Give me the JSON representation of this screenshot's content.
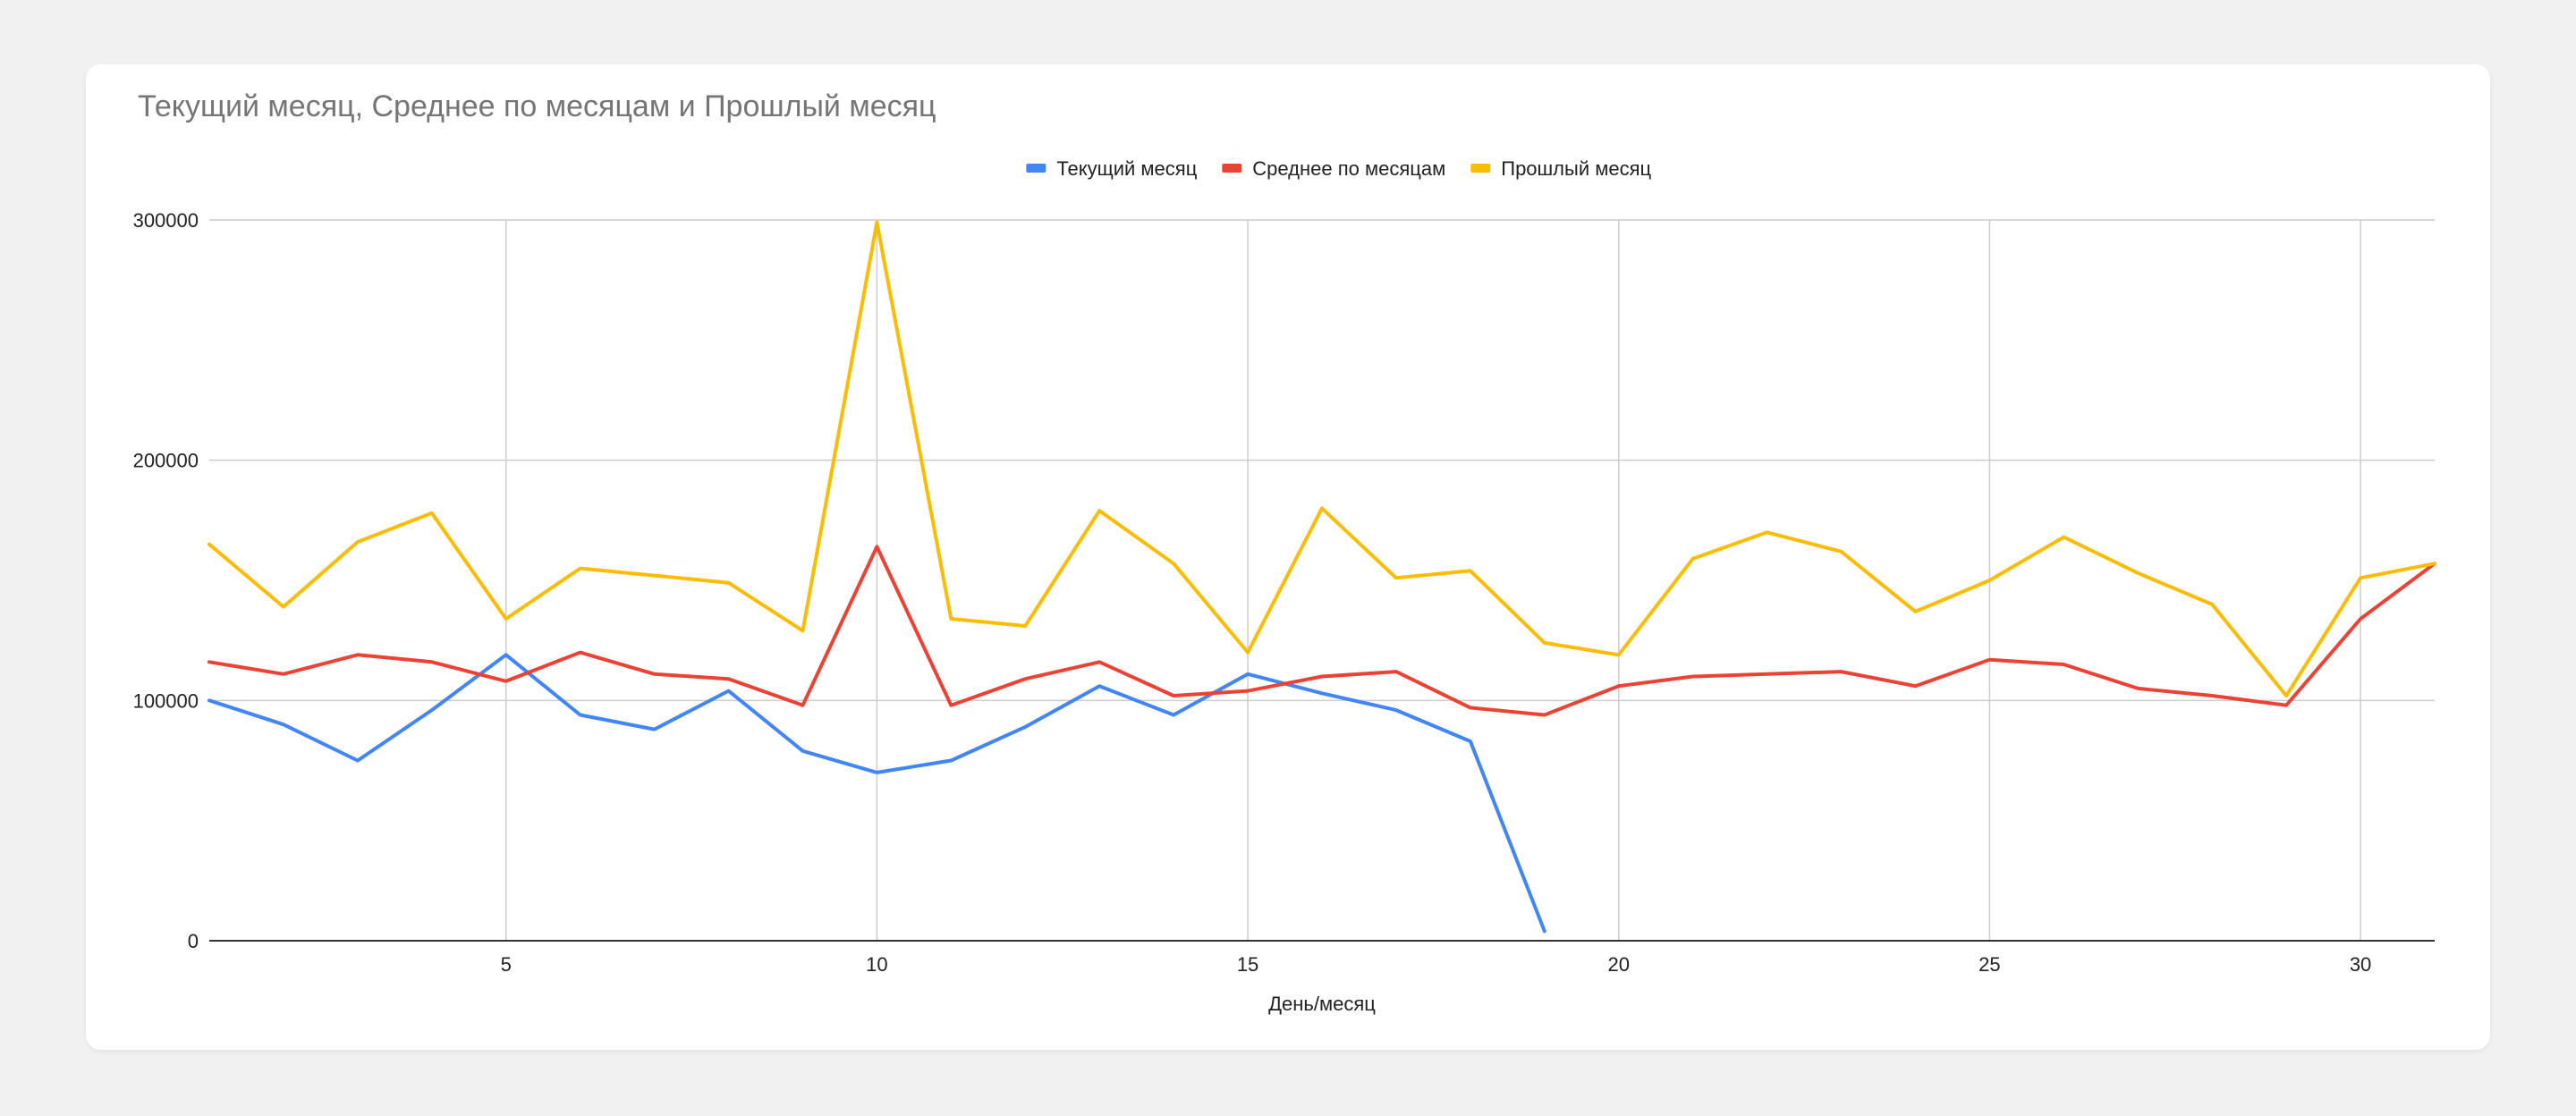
{
  "chart_data": {
    "type": "line",
    "title": "Текущий месяц, Среднее по месяцам и Прошлый месяц",
    "xlabel": "День/месяц",
    "ylabel": "",
    "xlim": [
      1,
      31
    ],
    "ylim": [
      0,
      300000
    ],
    "xticks": [
      5,
      10,
      15,
      20,
      25,
      30
    ],
    "yticks": [
      0,
      100000,
      200000,
      300000
    ],
    "grid": true,
    "legend_position": "top-center",
    "series": [
      {
        "name": "Текущий месяц",
        "color": "#4285f4",
        "x": [
          1,
          2,
          3,
          4,
          5,
          6,
          7,
          8,
          9,
          10,
          11,
          12,
          13,
          14,
          15,
          16,
          17,
          18,
          19
        ],
        "values": [
          100000,
          90000,
          75000,
          96000,
          119000,
          94000,
          88000,
          104000,
          79000,
          70000,
          75000,
          89000,
          106000,
          94000,
          111000,
          103000,
          96000,
          83000,
          4000
        ]
      },
      {
        "name": "Среднее по месяцам",
        "color": "#ea4335",
        "x": [
          1,
          2,
          3,
          4,
          5,
          6,
          7,
          8,
          9,
          10,
          11,
          12,
          13,
          14,
          15,
          16,
          17,
          18,
          19,
          20,
          21,
          22,
          23,
          24,
          25,
          26,
          27,
          28,
          29,
          30,
          31
        ],
        "values": [
          116000,
          111000,
          119000,
          116000,
          108000,
          120000,
          111000,
          109000,
          98000,
          164000,
          98000,
          109000,
          116000,
          102000,
          104000,
          110000,
          112000,
          97000,
          94000,
          106000,
          110000,
          111000,
          112000,
          106000,
          117000,
          115000,
          105000,
          102000,
          98000,
          134000,
          157000
        ]
      },
      {
        "name": "Прошлый месяц",
        "color": "#fbbc04",
        "x": [
          1,
          2,
          3,
          4,
          5,
          6,
          7,
          8,
          9,
          10,
          11,
          12,
          13,
          14,
          15,
          16,
          17,
          18,
          19,
          20,
          21,
          22,
          23,
          24,
          25,
          26,
          27,
          28,
          29,
          30,
          31
        ],
        "values": [
          165000,
          139000,
          166000,
          178000,
          134000,
          155000,
          152000,
          149000,
          129000,
          299000,
          134000,
          131000,
          179000,
          157000,
          120000,
          180000,
          151000,
          154000,
          124000,
          119000,
          159000,
          170000,
          162000,
          137000,
          150000,
          168000,
          153000,
          140000,
          102000,
          151000,
          157000
        ]
      }
    ]
  }
}
